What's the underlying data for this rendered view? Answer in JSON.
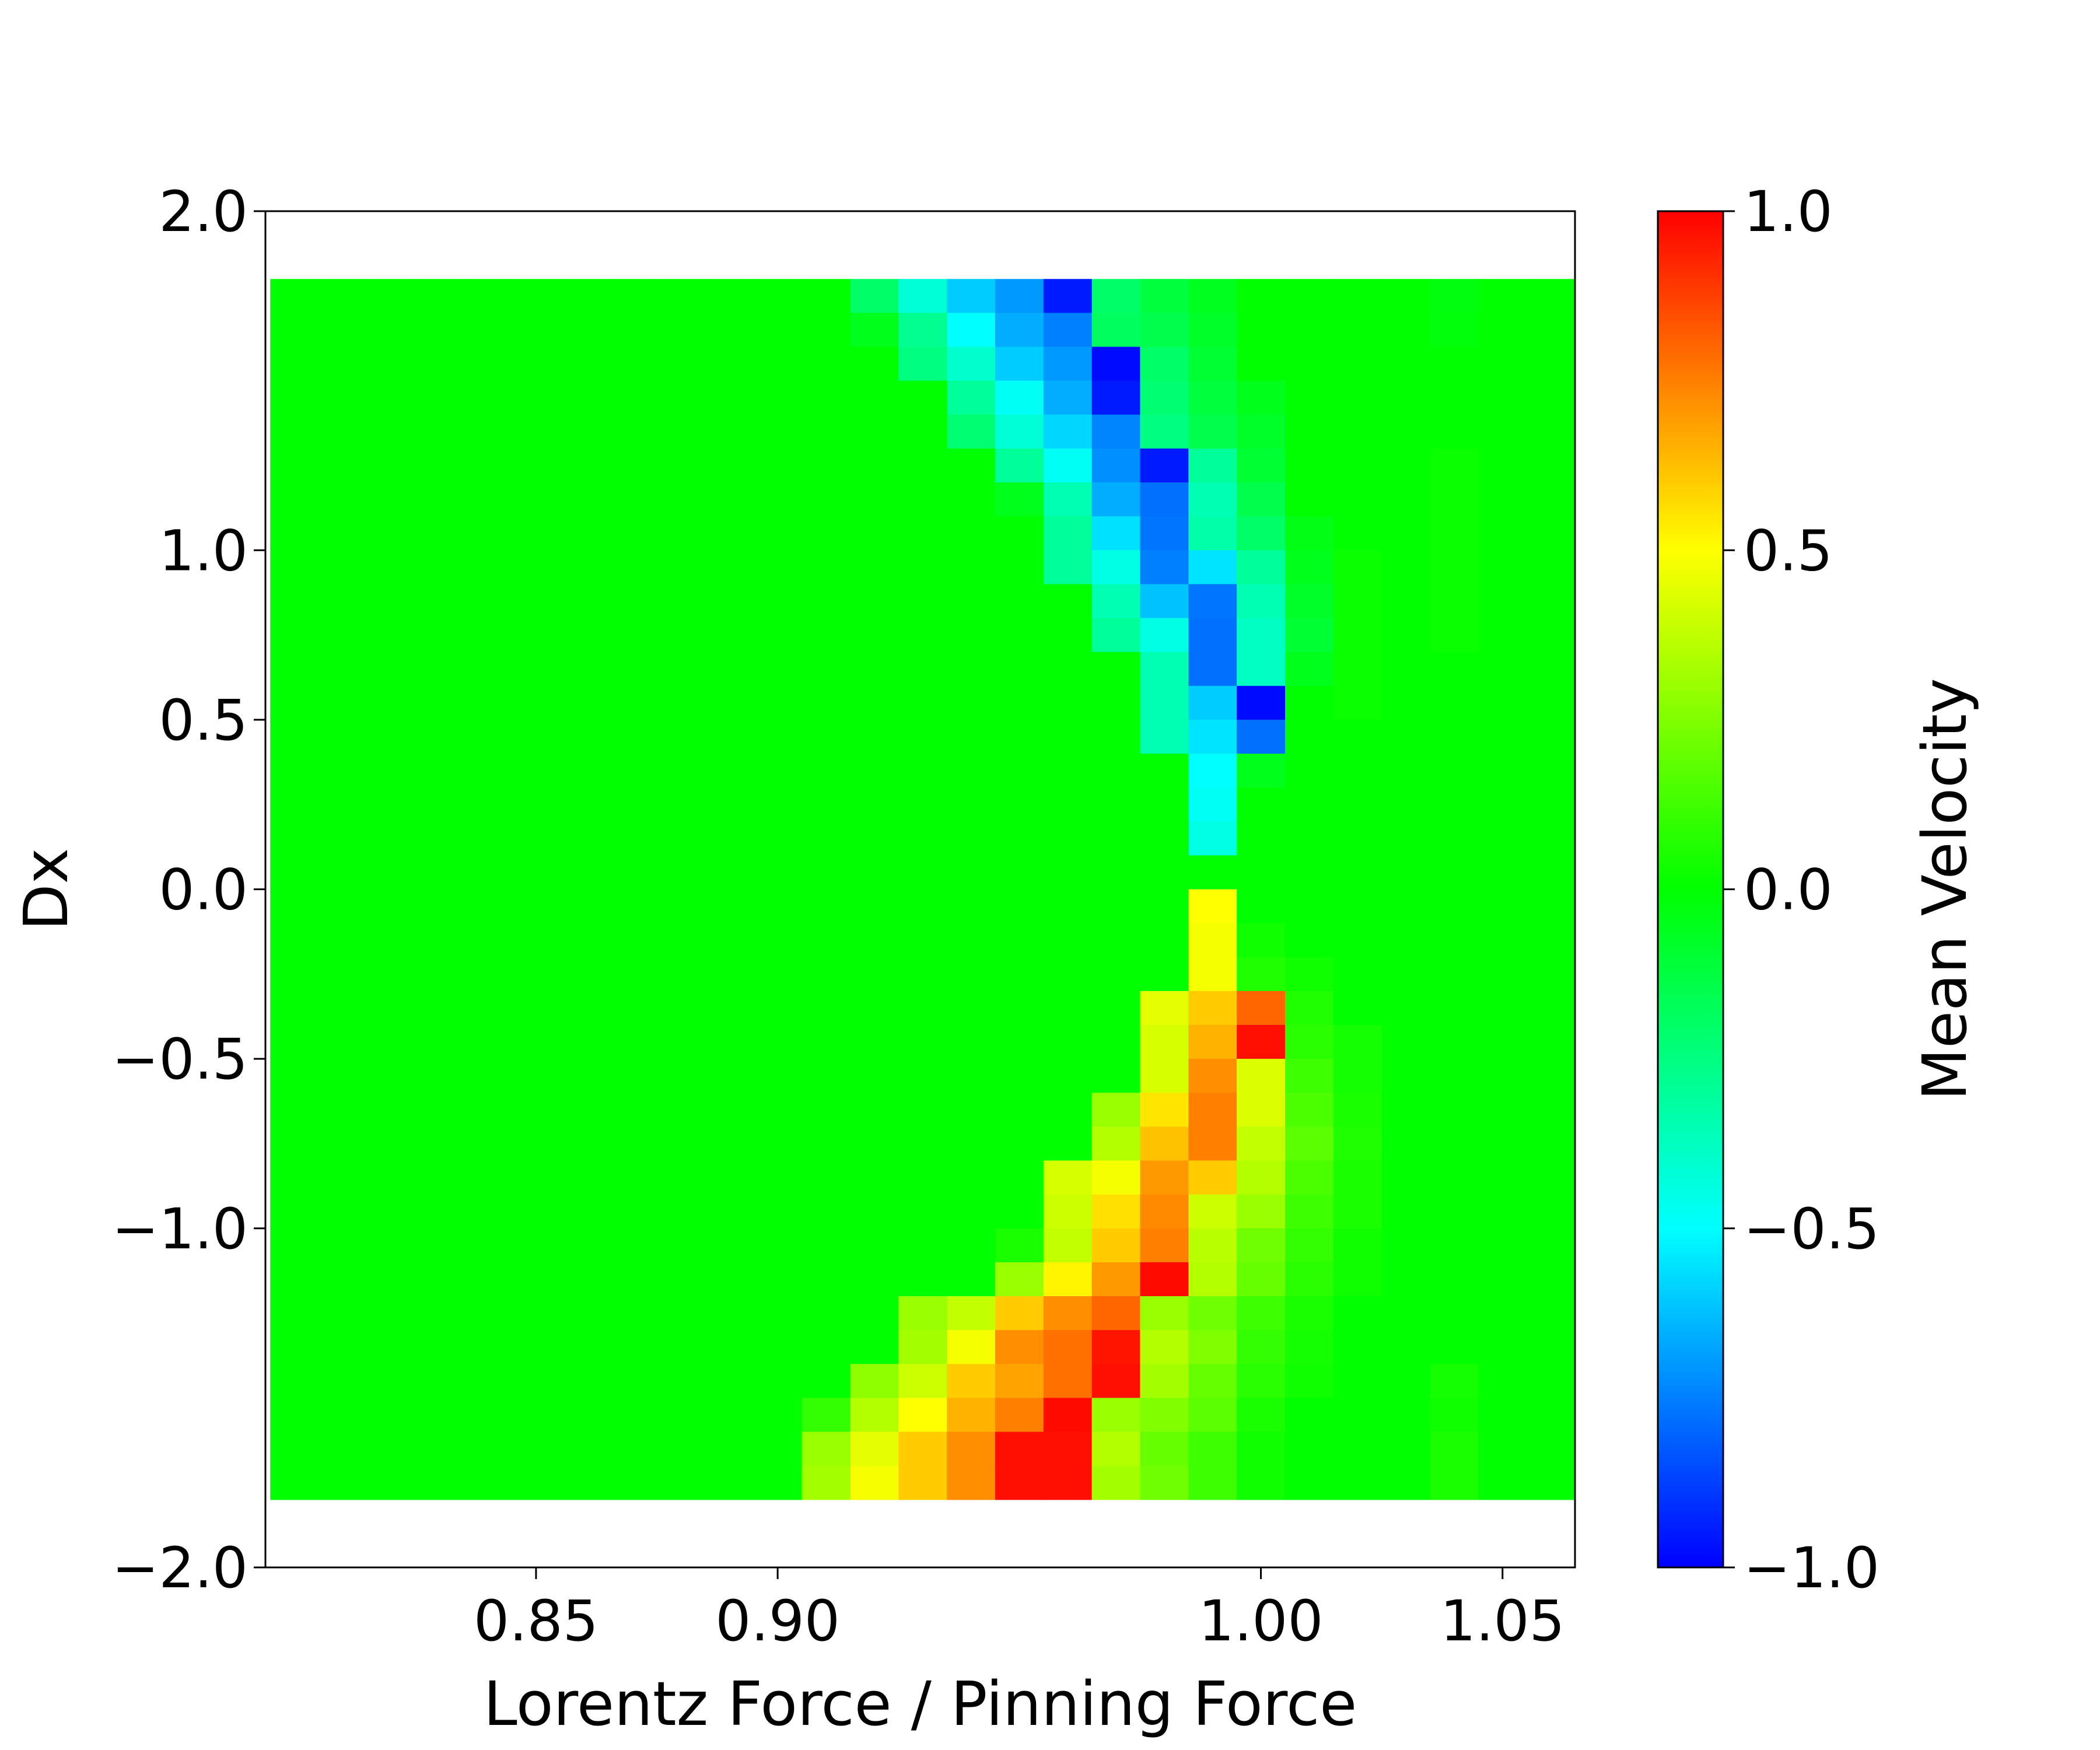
{
  "chart_data": {
    "type": "heatmap",
    "xlabel": "Lorentz Force / Pinning Force",
    "ylabel": "Dx",
    "colorbar_label": "Mean Velocity",
    "colormap": "jet",
    "xlim": [
      0.794,
      1.065
    ],
    "ylim": [
      -2.0,
      2.0
    ],
    "clim": [
      -1.0,
      1.0
    ],
    "grid": false,
    "x_ticks": [
      0.85,
      0.9,
      1.0,
      1.05
    ],
    "x_tick_labels": [
      "0.85",
      "0.90",
      "1.00",
      "1.05"
    ],
    "y_ticks": [
      2.0,
      1.0,
      0.5,
      0.0,
      -0.5,
      -1.0,
      -2.0
    ],
    "y_tick_labels": [
      "2.0",
      "1.0",
      "0.5",
      "0.0",
      "−0.5",
      "−1.0",
      "−2.0"
    ],
    "colorbar_ticks": [
      1.0,
      0.5,
      0.0,
      -0.5,
      -1.0
    ],
    "colorbar_tick_labels": [
      "1.0",
      "0.5",
      "0.0",
      "−0.5",
      "−1.0"
    ],
    "x_columns": [
      0.8,
      0.81,
      0.82,
      0.83,
      0.84,
      0.85,
      0.86,
      0.87,
      0.88,
      0.89,
      0.9,
      0.91,
      0.92,
      0.93,
      0.94,
      0.95,
      0.96,
      0.97,
      0.98,
      0.99,
      1.0,
      1.01,
      1.02,
      1.03,
      1.04,
      1.05,
      1.06
    ],
    "y_rows": [
      1.75,
      1.65,
      1.55,
      1.45,
      1.35,
      1.25,
      1.15,
      1.05,
      0.95,
      0.85,
      0.75,
      0.65,
      0.55,
      0.45,
      0.35,
      0.25,
      0.15,
      0.05,
      -0.05,
      -0.15,
      -0.25,
      -0.35,
      -0.45,
      -0.55,
      -0.65,
      -0.75,
      -0.85,
      -0.95,
      -1.05,
      -1.15,
      -1.25,
      -1.35,
      -1.45,
      -1.55,
      -1.65,
      -1.75
    ],
    "values": [
      [
        0,
        0,
        0,
        0,
        0,
        0,
        0,
        0,
        0,
        0,
        0,
        0,
        -0.2,
        -0.42,
        -0.6,
        -0.7,
        -0.95,
        -0.2,
        -0.12,
        -0.06,
        0,
        0,
        0,
        0,
        -0.03,
        0,
        0
      ],
      [
        0,
        0,
        0,
        0,
        0,
        0,
        0,
        0,
        0,
        0,
        0,
        0,
        -0.05,
        -0.28,
        -0.5,
        -0.66,
        -0.75,
        -0.18,
        -0.15,
        -0.08,
        0,
        0,
        0,
        0,
        -0.02,
        0,
        0
      ],
      [
        0,
        0,
        0,
        0,
        0,
        0,
        0,
        0,
        0,
        0,
        0,
        0,
        0,
        -0.25,
        -0.4,
        -0.6,
        -0.7,
        -0.98,
        -0.2,
        -0.1,
        0,
        0,
        0,
        0,
        0,
        0,
        0
      ],
      [
        0,
        0,
        0,
        0,
        0,
        0,
        0,
        0,
        0,
        0,
        0,
        0,
        0,
        0,
        -0.3,
        -0.48,
        -0.66,
        -0.95,
        -0.22,
        -0.12,
        -0.05,
        0,
        0,
        0,
        0,
        0,
        0
      ],
      [
        0,
        0,
        0,
        0,
        0,
        0,
        0,
        0,
        0,
        0,
        0,
        0,
        0,
        0,
        -0.22,
        -0.42,
        -0.58,
        -0.74,
        -0.25,
        -0.15,
        -0.08,
        0,
        0,
        0,
        0,
        0,
        0
      ],
      [
        0,
        0,
        0,
        0,
        0,
        0,
        0,
        0,
        0,
        0,
        0,
        0,
        0,
        0,
        0,
        -0.3,
        -0.48,
        -0.72,
        -0.95,
        -0.3,
        -0.1,
        0,
        0,
        0,
        0.02,
        0,
        0
      ],
      [
        0,
        0,
        0,
        0,
        0,
        0,
        0,
        0,
        0,
        0,
        0,
        0,
        0,
        0,
        0,
        -0.05,
        -0.35,
        -0.66,
        -0.78,
        -0.35,
        -0.15,
        0,
        0,
        0,
        0.02,
        0,
        0
      ],
      [
        0,
        0,
        0,
        0,
        0,
        0,
        0,
        0,
        0,
        0,
        0,
        0,
        0,
        0,
        0,
        0,
        -0.3,
        -0.56,
        -0.77,
        -0.33,
        -0.2,
        -0.04,
        0,
        0,
        0.02,
        0,
        0
      ],
      [
        0,
        0,
        0,
        0,
        0,
        0,
        0,
        0,
        0,
        0,
        0,
        0,
        0,
        0,
        0,
        0,
        -0.3,
        -0.45,
        -0.75,
        -0.55,
        -0.3,
        -0.05,
        0.02,
        0,
        0.02,
        0,
        0
      ],
      [
        0,
        0,
        0,
        0,
        0,
        0,
        0,
        0,
        0,
        0,
        0,
        0,
        0,
        0,
        0,
        0,
        0,
        -0.35,
        -0.62,
        -0.77,
        -0.35,
        -0.08,
        0.02,
        0,
        0.02,
        0,
        0
      ],
      [
        0,
        0,
        0,
        0,
        0,
        0,
        0,
        0,
        0,
        0,
        0,
        0,
        0,
        0,
        0,
        0,
        0,
        -0.3,
        -0.45,
        -0.78,
        -0.38,
        -0.1,
        0.02,
        0,
        0.02,
        0,
        0
      ],
      [
        0,
        0,
        0,
        0,
        0,
        0,
        0,
        0,
        0,
        0,
        0,
        0,
        0,
        0,
        0,
        0,
        0,
        0,
        -0.35,
        -0.78,
        -0.38,
        -0.05,
        0.02,
        0,
        0,
        0,
        0
      ],
      [
        0,
        0,
        0,
        0,
        0,
        0,
        0,
        0,
        0,
        0,
        0,
        0,
        0,
        0,
        0,
        0,
        0,
        0,
        -0.35,
        -0.6,
        -0.98,
        0,
        0.02,
        0,
        0,
        0,
        0
      ],
      [
        0,
        0,
        0,
        0,
        0,
        0,
        0,
        0,
        0,
        0,
        0,
        0,
        0,
        0,
        0,
        0,
        0,
        0,
        -0.35,
        -0.55,
        -0.78,
        0,
        0,
        0,
        0,
        0,
        0
      ],
      [
        0,
        0,
        0,
        0,
        0,
        0,
        0,
        0,
        0,
        0,
        0,
        0,
        0,
        0,
        0,
        0,
        0,
        0,
        0,
        -0.5,
        -0.05,
        0,
        0,
        0,
        0,
        0,
        0
      ],
      [
        0,
        0,
        0,
        0,
        0,
        0,
        0,
        0,
        0,
        0,
        0,
        0,
        0,
        0,
        0,
        0,
        0,
        0,
        0,
        -0.48,
        0,
        0,
        0,
        0,
        0,
        0,
        0
      ],
      [
        0,
        0,
        0,
        0,
        0,
        0,
        0,
        0,
        0,
        0,
        0,
        0,
        0,
        0,
        0,
        0,
        0,
        0,
        0,
        -0.45,
        0,
        0,
        0,
        0,
        0,
        0,
        0
      ],
      [
        0,
        0,
        0,
        0,
        0,
        0,
        0,
        0,
        0,
        0,
        0,
        0,
        0,
        0,
        0,
        0,
        0,
        0,
        0,
        0,
        0,
        0,
        0,
        0,
        0,
        0,
        0
      ],
      [
        0,
        0,
        0,
        0,
        0,
        0,
        0,
        0,
        0,
        0,
        0,
        0,
        0,
        0,
        0,
        0,
        0,
        0,
        0,
        0.5,
        0,
        0,
        0,
        0,
        0,
        0,
        0
      ],
      [
        0,
        0,
        0,
        0,
        0,
        0,
        0,
        0,
        0,
        0,
        0,
        0,
        0,
        0,
        0,
        0,
        0,
        0,
        0,
        0.48,
        0.03,
        0,
        0,
        0,
        0,
        0,
        0
      ],
      [
        0,
        0,
        0,
        0,
        0,
        0,
        0,
        0,
        0,
        0,
        0,
        0,
        0,
        0,
        0,
        0,
        0,
        0,
        0,
        0.48,
        0.06,
        0.03,
        0,
        0,
        0,
        0,
        0
      ],
      [
        0,
        0,
        0,
        0,
        0,
        0,
        0,
        0,
        0,
        0,
        0,
        0,
        0,
        0,
        0,
        0,
        0,
        0,
        0.45,
        0.6,
        0.8,
        0.06,
        0,
        0,
        0,
        0,
        0
      ],
      [
        0,
        0,
        0,
        0,
        0,
        0,
        0,
        0,
        0,
        0,
        0,
        0,
        0,
        0,
        0,
        0,
        0,
        0,
        0.42,
        0.65,
        0.97,
        0.08,
        0.04,
        0,
        0,
        0,
        0
      ],
      [
        0,
        0,
        0,
        0,
        0,
        0,
        0,
        0,
        0,
        0,
        0,
        0,
        0,
        0,
        0,
        0,
        0,
        0,
        0.42,
        0.72,
        0.43,
        0.12,
        0.04,
        0,
        0,
        0,
        0
      ],
      [
        0,
        0,
        0,
        0,
        0,
        0,
        0,
        0,
        0,
        0,
        0,
        0,
        0,
        0,
        0,
        0,
        0,
        0.3,
        0.55,
        0.75,
        0.43,
        0.15,
        0.05,
        0,
        0,
        0,
        0
      ],
      [
        0,
        0,
        0,
        0,
        0,
        0,
        0,
        0,
        0,
        0,
        0,
        0,
        0,
        0,
        0,
        0,
        0,
        0.35,
        0.62,
        0.75,
        0.38,
        0.18,
        0.06,
        0,
        0,
        0,
        0
      ],
      [
        0,
        0,
        0,
        0,
        0,
        0,
        0,
        0,
        0,
        0,
        0,
        0,
        0,
        0,
        0,
        0,
        0.42,
        0.48,
        0.7,
        0.6,
        0.35,
        0.15,
        0.05,
        0,
        0,
        0,
        0
      ],
      [
        0,
        0,
        0,
        0,
        0,
        0,
        0,
        0,
        0,
        0,
        0,
        0,
        0,
        0,
        0,
        0,
        0.4,
        0.56,
        0.73,
        0.4,
        0.3,
        0.12,
        0.05,
        0,
        0,
        0,
        0
      ],
      [
        0,
        0,
        0,
        0,
        0,
        0,
        0,
        0,
        0,
        0,
        0,
        0,
        0,
        0,
        0,
        0.05,
        0.38,
        0.6,
        0.75,
        0.36,
        0.22,
        0.1,
        0.03,
        0,
        0,
        0,
        0
      ],
      [
        0,
        0,
        0,
        0,
        0,
        0,
        0,
        0,
        0,
        0,
        0,
        0,
        0,
        0,
        0,
        0.3,
        0.52,
        0.7,
        0.98,
        0.35,
        0.2,
        0.08,
        0.03,
        0,
        0,
        0,
        0
      ],
      [
        0,
        0,
        0,
        0,
        0,
        0,
        0,
        0,
        0,
        0,
        0,
        0,
        0,
        0.3,
        0.38,
        0.6,
        0.72,
        0.8,
        0.3,
        0.22,
        0.12,
        0.05,
        0,
        0,
        0,
        0,
        0
      ],
      [
        0,
        0,
        0,
        0,
        0,
        0,
        0,
        0,
        0,
        0,
        0,
        0,
        0,
        0.32,
        0.48,
        0.72,
        0.78,
        0.96,
        0.35,
        0.25,
        0.1,
        0.04,
        0,
        0,
        0,
        0,
        0
      ],
      [
        0,
        0,
        0,
        0,
        0,
        0,
        0,
        0,
        0,
        0,
        0,
        0,
        0.28,
        0.4,
        0.6,
        0.68,
        0.78,
        0.97,
        0.32,
        0.2,
        0.08,
        0.03,
        0,
        0,
        0.04,
        0,
        0
      ],
      [
        0,
        0,
        0,
        0,
        0,
        0,
        0,
        0,
        0,
        0,
        0,
        0.1,
        0.35,
        0.5,
        0.65,
        0.75,
        0.98,
        0.3,
        0.25,
        0.18,
        0.05,
        0,
        0,
        0,
        0.03,
        0,
        0
      ],
      [
        0,
        0,
        0,
        0,
        0,
        0,
        0,
        0,
        0,
        0,
        0,
        0.3,
        0.45,
        0.6,
        0.72,
        0.97,
        0.97,
        0.35,
        0.2,
        0.12,
        0.03,
        0,
        0,
        0,
        0.05,
        0,
        0
      ],
      [
        0,
        0,
        0,
        0,
        0,
        0,
        0,
        0,
        0,
        0,
        0,
        0.32,
        0.48,
        0.6,
        0.72,
        0.97,
        0.97,
        0.32,
        0.22,
        0.12,
        0.03,
        0,
        0,
        0,
        0.05,
        0,
        0
      ]
    ]
  }
}
